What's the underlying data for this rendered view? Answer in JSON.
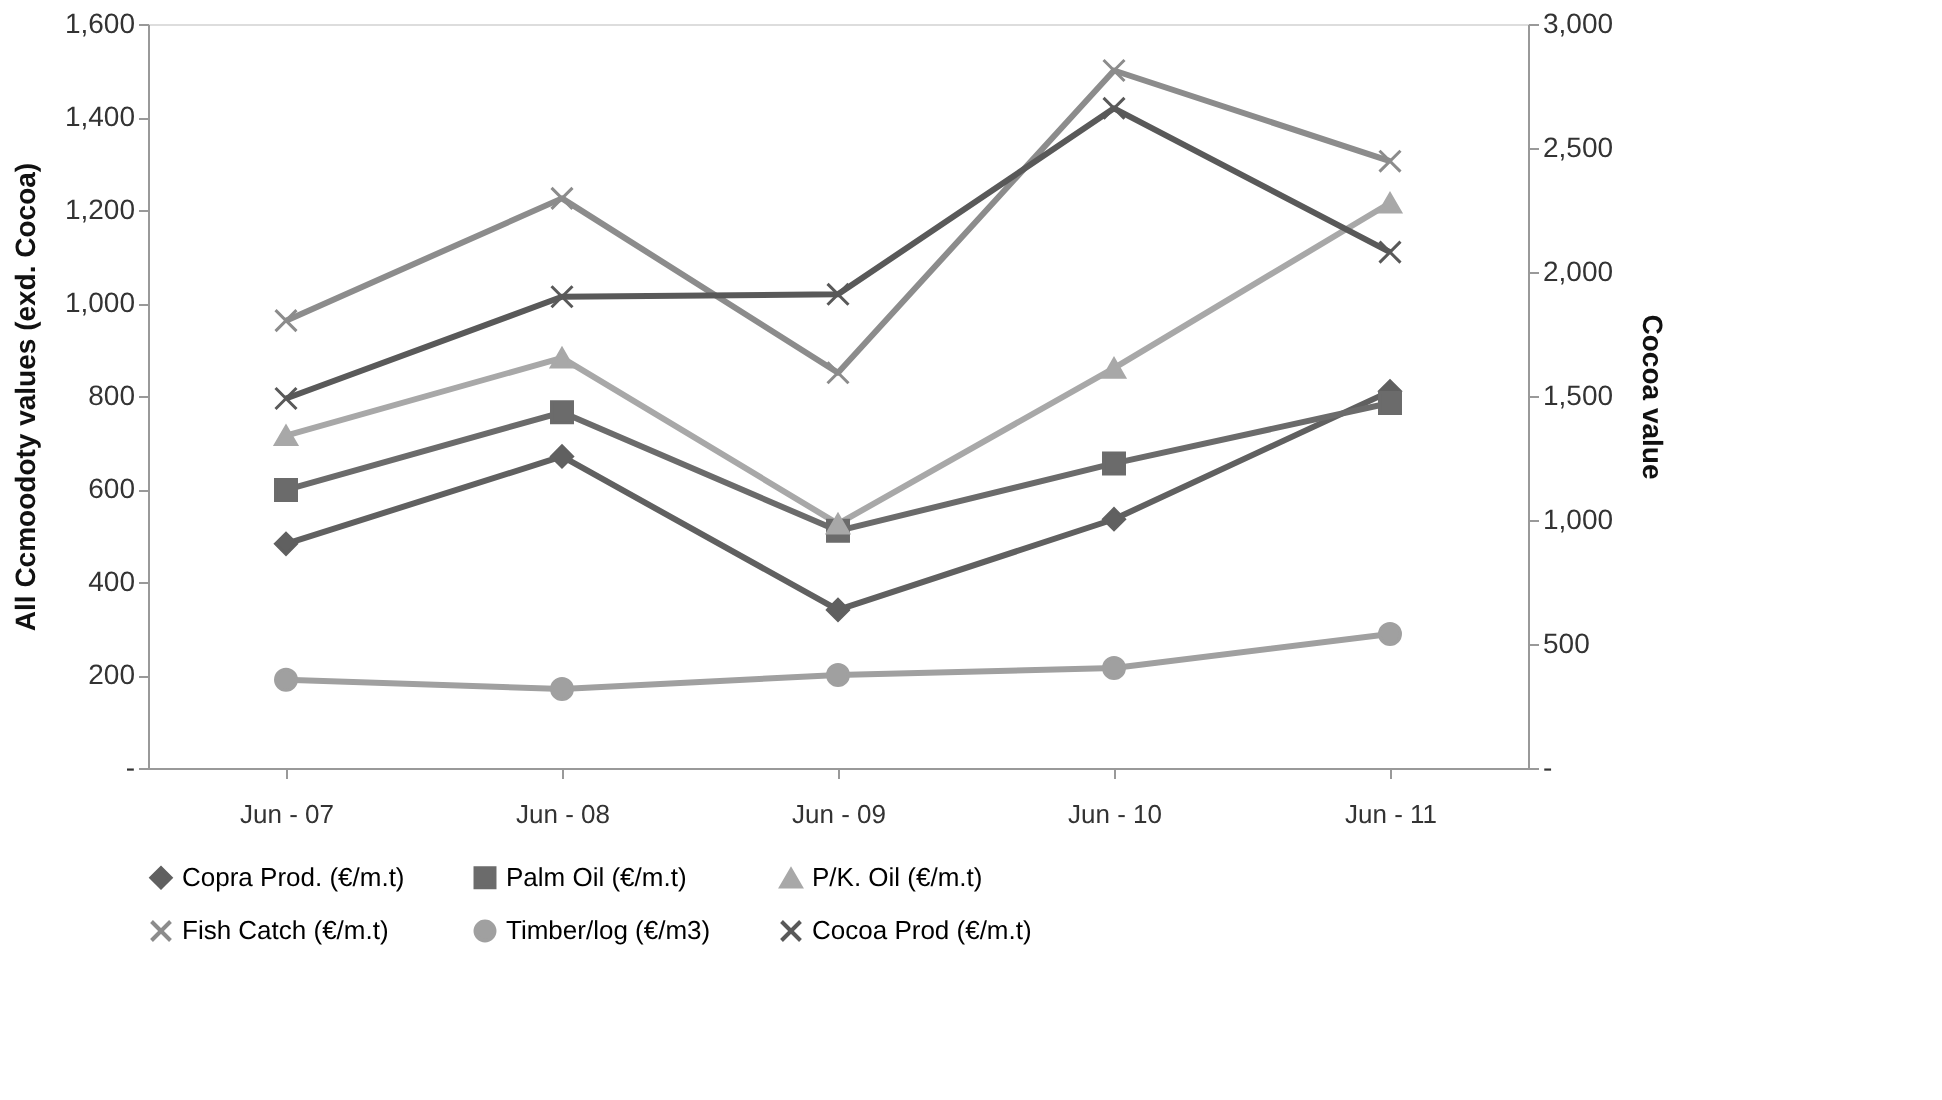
{
  "chart_data": {
    "type": "line",
    "categories": [
      "Jun - 07",
      "Jun - 08",
      "Jun - 09",
      "Jun - 10",
      "Jun - 11"
    ],
    "ylabel": "All Ccmoodoty values (exd. Cocoa)",
    "y2label": "Cocoa value",
    "ylim": [
      0,
      1600
    ],
    "yticks": [
      {
        "value": 0,
        "label": "-"
      },
      200,
      400,
      600,
      800,
      {
        "value": 1000,
        "label": "1,000"
      },
      {
        "value": 1200,
        "label": "1,200"
      },
      {
        "value": 1400,
        "label": "1,400"
      },
      {
        "value": 1600,
        "label": "1,600"
      }
    ],
    "y2lim": [
      0,
      3000
    ],
    "y2ticks": [
      {
        "value": 0,
        "label": "-"
      },
      500,
      {
        "value": 1000,
        "label": "1,000"
      },
      {
        "value": 1500,
        "label": "1,500"
      },
      {
        "value": 2000,
        "label": "2,000"
      },
      {
        "value": 2500,
        "label": "2,500"
      },
      {
        "value": 3000,
        "label": "3,000"
      }
    ],
    "grid": false,
    "legend": "bottom",
    "line_style": "solid",
    "series": [
      {
        "name": "Copra Prod. (€/m.t)",
        "color": "#606060",
        "marker": "diamond",
        "values": [
          482,
          670,
          340,
          535,
          810
        ]
      },
      {
        "name": "Palm Oil (€/m.t)",
        "color": "#6b6b6b",
        "marker": "square",
        "values": [
          598,
          765,
          510,
          655,
          785
        ]
      },
      {
        "name": "P/K. Oil (€/m.t)",
        "color": "#a8a8a8",
        "marker": "triangle",
        "values": [
          715,
          882,
          525,
          860,
          1215
        ]
      },
      {
        "name": "Fish Catch (€/m.t)",
        "color": "#8c8c8c",
        "marker": "cross",
        "values": [
          962,
          1225,
          850,
          1500,
          1305
        ]
      },
      {
        "name": "Timber/log (€/m3)",
        "color": "#a0a0a0",
        "marker": "circle",
        "values": [
          190,
          170,
          200,
          215,
          288
        ]
      },
      {
        "name": "Cocoa Prod (€/m.t)",
        "color": "#595959",
        "marker": "cross",
        "axis": "y2",
        "values": [
          1490,
          1900,
          1910,
          2660,
          2080
        ]
      }
    ]
  }
}
